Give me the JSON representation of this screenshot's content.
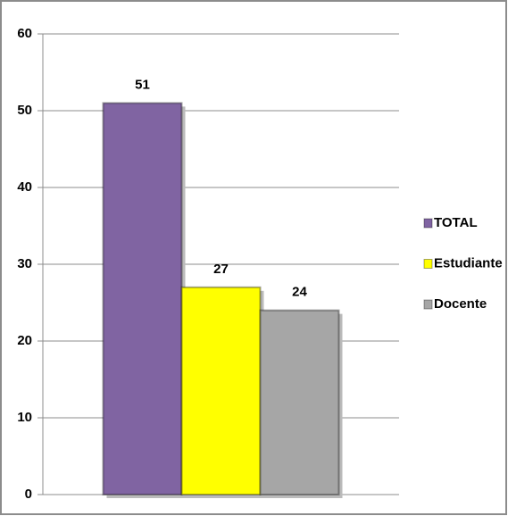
{
  "chart_data": {
    "type": "bar",
    "categories": [
      null
    ],
    "series": [
      {
        "name": "TOTAL",
        "color": "#8064a2",
        "values": [
          51
        ]
      },
      {
        "name": "Estudiante",
        "color": "#ffff00",
        "values": [
          27
        ]
      },
      {
        "name": "Docente",
        "color": "#a6a6a6",
        "values": [
          24
        ]
      }
    ],
    "ylim": [
      0,
      60
    ],
    "yticks": [
      0,
      10,
      20,
      30,
      40,
      50,
      60
    ],
    "grid": true,
    "legend": "right"
  }
}
